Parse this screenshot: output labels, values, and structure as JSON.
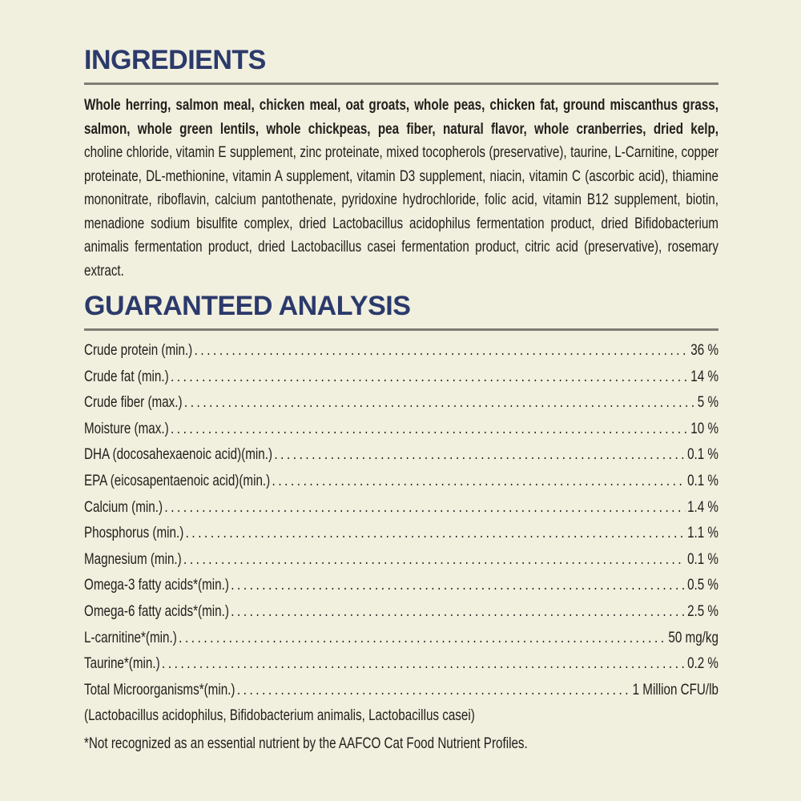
{
  "theme": {
    "bg": "#f1efde",
    "heading": "#2b3a6b",
    "text": "#21201c",
    "divider": "#7f7d74"
  },
  "ingredients": {
    "title": "INGREDIENTS",
    "primary_text": "Whole herring, salmon meal, chicken meal, oat groats, whole peas, chicken fat, ground miscanthus grass, salmon, whole green lentils, whole chickpeas, pea fiber, natural flavor, whole cranberries, dried kelp,",
    "secondary_text": "choline chloride, vitamin E supplement, zinc proteinate, mixed tocopherols (preservative), taurine, L-Carnitine, copper proteinate, DL-methionine, vitamin A supplement, vitamin D3 supplement, niacin, vitamin C (ascorbic acid), thiamine mononitrate, riboflavin, calcium pantothenate, pyridoxine hydrochloride, folic acid, vitamin B12 supplement, biotin, menadione sodium bisulfite complex, dried Lactobacillus acidophilus fermentation product, dried Bifidobacterium animalis fermentation product, dried Lactobacillus casei fermentation product, citric acid (preservative), rosemary extract."
  },
  "guaranteed_analysis": {
    "title": "GUARANTEED ANALYSIS",
    "rows": [
      {
        "label": "Crude protein (min.)",
        "value": "36 %"
      },
      {
        "label": "Crude fat (min.)",
        "value": "14 %"
      },
      {
        "label": "Crude fiber (max.)",
        "value": "5 %"
      },
      {
        "label": "Moisture (max.)",
        "value": "10 %"
      },
      {
        "label": "DHA (docosahexaenoic acid)(min.)",
        "value": "0.1 %"
      },
      {
        "label": "EPA (eicosapentaenoic acid)(min.)",
        "value": "0.1 %"
      },
      {
        "label": "Calcium (min.)",
        "value": "1.4 %"
      },
      {
        "label": "Phosphorus (min.)",
        "value": "1.1 %"
      },
      {
        "label": "Magnesium (min.)",
        "value": "0.1 %"
      },
      {
        "label": "Omega-3 fatty acids*(min.)",
        "value": "0.5 %"
      },
      {
        "label": "Omega-6 fatty acids*(min.)",
        "value": "2.5 %"
      },
      {
        "label": "L-carnitine*(min.)",
        "value": "50 mg/kg"
      },
      {
        "label": "Taurine*(min.)",
        "value": "0.2 %"
      },
      {
        "label": "Total Microorganisms*(min.)",
        "value": "1 Million CFU/lb"
      }
    ],
    "note": "(Lactobacillus acidophilus, Bifidobacterium animalis, Lactobacillus casei)",
    "footnote": "*Not recognized as an essential nutrient by the AAFCO Cat Food Nutrient Profiles."
  }
}
